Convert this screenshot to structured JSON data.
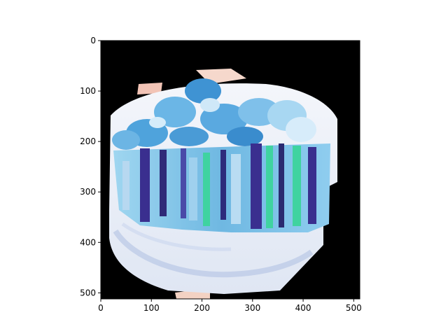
{
  "figure": {
    "image": {
      "description_icon": "sandwich-photo",
      "background_color": "#000000",
      "plate_color": "#e9eef7",
      "chip_color": "#5aa9e0",
      "bread_color": "#7fc4e8",
      "filling_color": "#3a2f8f",
      "lettuce_color": "#3fd3a0"
    },
    "x_axis": {
      "ticks": [
        0,
        100,
        200,
        300,
        400,
        500
      ],
      "range": [
        0,
        512
      ]
    },
    "y_axis": {
      "ticks": [
        0,
        100,
        200,
        300,
        400,
        500
      ],
      "range": [
        0,
        512
      ]
    }
  }
}
